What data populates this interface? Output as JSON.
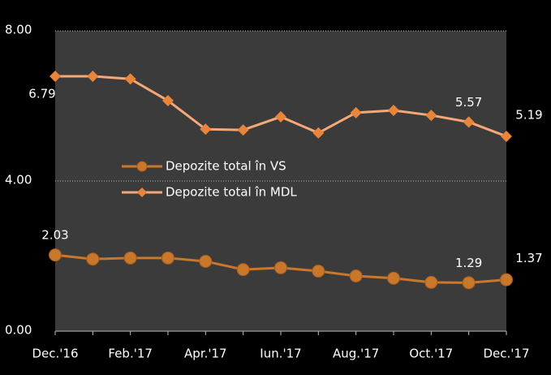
{
  "chart_data": {
    "type": "line",
    "categories": [
      "Dec.'16",
      null,
      "Feb.'17",
      null,
      "Apr.'17",
      null,
      "Iun.'17",
      null,
      "Aug.'17",
      null,
      "Oct.'17",
      null,
      "Dec.'17"
    ],
    "series": [
      {
        "name": "Depozite total în VS",
        "color": "#c9772a",
        "marker": "circle",
        "values": [
          2.03,
          1.92,
          1.95,
          1.95,
          1.86,
          1.64,
          1.69,
          1.6,
          1.47,
          1.41,
          1.3,
          1.29,
          1.37
        ],
        "value_labels": [
          "2.03",
          null,
          null,
          null,
          null,
          null,
          null,
          null,
          null,
          null,
          null,
          "1.29",
          "1.37"
        ]
      },
      {
        "name": "Depozite total în MDL",
        "color": "#f4a878",
        "marker_color": "#e8853a",
        "marker": "diamond",
        "values": [
          6.79,
          6.79,
          6.72,
          6.14,
          5.38,
          5.36,
          5.71,
          5.28,
          5.82,
          5.88,
          5.75,
          5.57,
          5.19
        ],
        "value_labels": [
          "6.79",
          null,
          null,
          null,
          null,
          null,
          null,
          null,
          null,
          null,
          null,
          "5.57",
          "5.19"
        ]
      }
    ],
    "ylim": [
      0,
      8
    ],
    "yticks": [
      {
        "value": 0,
        "label": "0.00"
      },
      {
        "value": 4,
        "label": "4.00"
      },
      {
        "value": 8,
        "label": "8.00"
      }
    ],
    "grid": true
  }
}
